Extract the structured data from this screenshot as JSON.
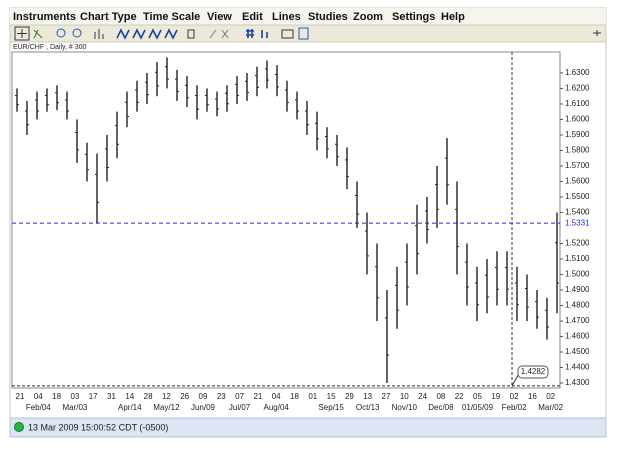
{
  "menu": [
    "Instruments",
    "Chart Type",
    "Time Scale",
    "View",
    "Edit",
    "Lines",
    "Studies",
    "Zoom",
    "Settings",
    "Help"
  ],
  "chart": {
    "type": "bar-range",
    "title": "EUR/CHF , Daily, # 300",
    "ylim": [
      1.4268,
      1.6435
    ],
    "yticks": [
      {
        "value": 1.63,
        "label": "1.6300"
      },
      {
        "value": 1.62,
        "label": "1.6200"
      },
      {
        "value": 1.61,
        "label": "1.6100"
      },
      {
        "value": 1.6,
        "label": "1.6000"
      },
      {
        "value": 1.59,
        "label": "1.5900"
      },
      {
        "value": 1.58,
        "label": "1.5800"
      },
      {
        "value": 1.57,
        "label": "1.5700"
      },
      {
        "value": 1.56,
        "label": "1.5600"
      },
      {
        "value": 1.55,
        "label": "1.5500"
      },
      {
        "value": 1.54,
        "label": "1.5400"
      },
      {
        "value": 1.52,
        "label": "1.5200"
      },
      {
        "value": 1.51,
        "label": "1.5100"
      },
      {
        "value": 1.5,
        "label": "1.5000"
      },
      {
        "value": 1.49,
        "label": "1.4900"
      },
      {
        "value": 1.48,
        "label": "1.4800"
      },
      {
        "value": 1.47,
        "label": "1.4700"
      },
      {
        "value": 1.46,
        "label": "1.4600"
      },
      {
        "value": 1.45,
        "label": "1.4500"
      },
      {
        "value": 1.44,
        "label": "1.4400"
      },
      {
        "value": 1.43,
        "label": "1.4300"
      }
    ],
    "high": [
      1.62,
      1.612,
      1.618,
      1.62,
      1.622,
      1.618,
      1.6,
      1.585,
      1.578,
      1.59,
      1.605,
      1.618,
      1.625,
      1.63,
      1.637,
      1.64,
      1.632,
      1.628,
      1.622,
      1.62,
      1.618,
      1.622,
      1.628,
      1.63,
      1.634,
      1.638,
      1.635,
      1.625,
      1.618,
      1.612,
      1.605,
      1.595,
      1.59,
      1.582,
      1.56,
      1.54,
      1.52,
      1.49,
      1.505,
      1.52,
      1.545,
      1.55,
      1.57,
      1.588,
      1.56,
      1.52,
      1.505,
      1.51,
      1.515,
      1.515,
      1.505,
      1.5,
      1.49,
      1.485,
      1.54
    ],
    "low": [
      1.605,
      1.59,
      1.6,
      1.605,
      1.606,
      1.6,
      1.572,
      1.56,
      1.533,
      1.56,
      1.575,
      1.595,
      1.605,
      1.61,
      1.615,
      1.62,
      1.612,
      1.608,
      1.6,
      1.605,
      1.602,
      1.605,
      1.61,
      1.612,
      1.615,
      1.62,
      1.615,
      1.605,
      1.6,
      1.59,
      1.58,
      1.575,
      1.57,
      1.555,
      1.53,
      1.5,
      1.47,
      1.43,
      1.465,
      1.48,
      1.5,
      1.52,
      1.53,
      1.545,
      1.5,
      1.48,
      1.47,
      1.475,
      1.48,
      1.48,
      1.47,
      1.47,
      1.465,
      1.458,
      1.475
    ],
    "x_labels": [
      "21",
      "04",
      "18",
      "03",
      "17",
      "31",
      "14",
      "28",
      "12",
      "26",
      "09",
      "23",
      "07",
      "21",
      "04",
      "18",
      "01",
      "15",
      "29",
      "13",
      "27",
      "10",
      "24",
      "08",
      "22",
      "05",
      "19",
      "02",
      "16",
      "02"
    ],
    "month_labels": [
      "Feb/04",
      "Mar/03",
      "Apr/14",
      "May/12",
      "Jun/09",
      "Jul/07",
      "Aug/04",
      "Sep/15",
      "Oct/13",
      "Nov/10",
      "Dec/08",
      "01/05/09",
      "Feb/02",
      "Mar/02"
    ],
    "crosshair": {
      "value": 1.5331,
      "label": "1.5331"
    },
    "cursor": {
      "value": 1.4282,
      "label": "1.4282"
    }
  },
  "status": "13 Mar 2009 15:00:52  CDT (-0500)"
}
